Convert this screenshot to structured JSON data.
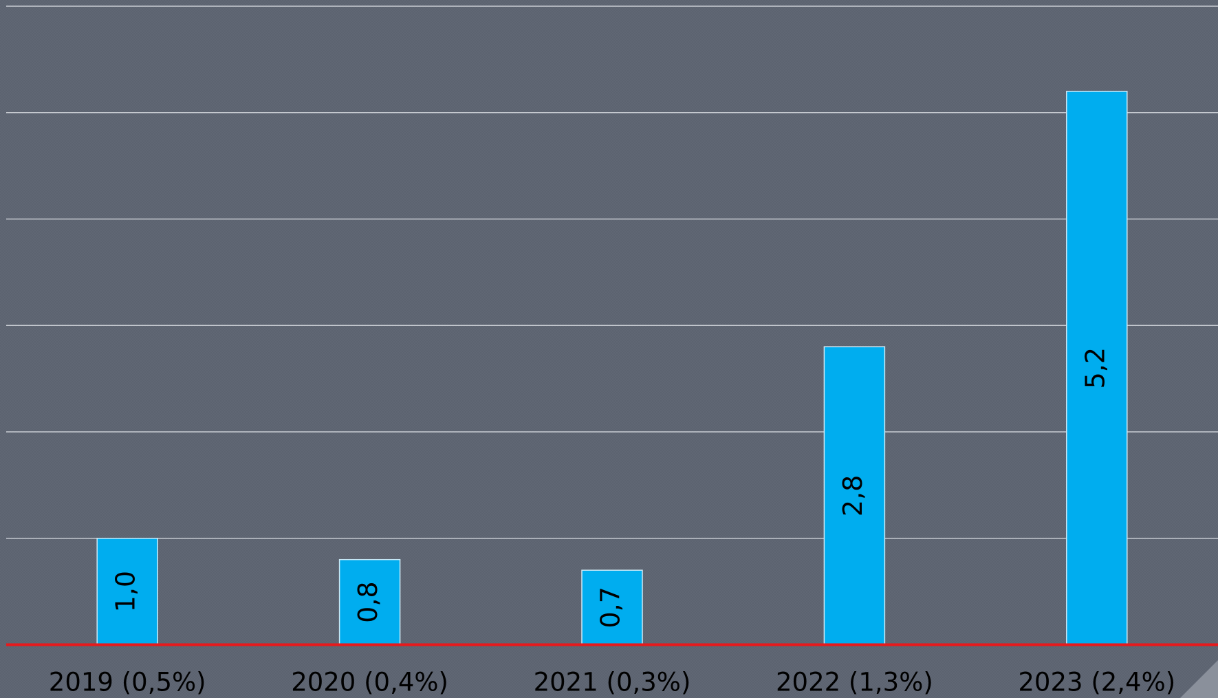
{
  "chart_data": {
    "type": "bar",
    "categories": [
      "2019 (0,5%)",
      "2020 (0,4%)",
      "2021 (0,3%)",
      "2022 (1,3%)",
      "2023 (2,4%)"
    ],
    "values": [
      1.0,
      0.8,
      0.7,
      2.8,
      5.2
    ],
    "value_labels": [
      "1,0",
      "0,8",
      "0,7",
      "2,8",
      "5,2"
    ],
    "color": "#00adef",
    "ylim": [
      0,
      6
    ],
    "yticks": [
      0,
      1,
      2,
      3,
      4,
      5,
      6
    ],
    "grid": true
  }
}
